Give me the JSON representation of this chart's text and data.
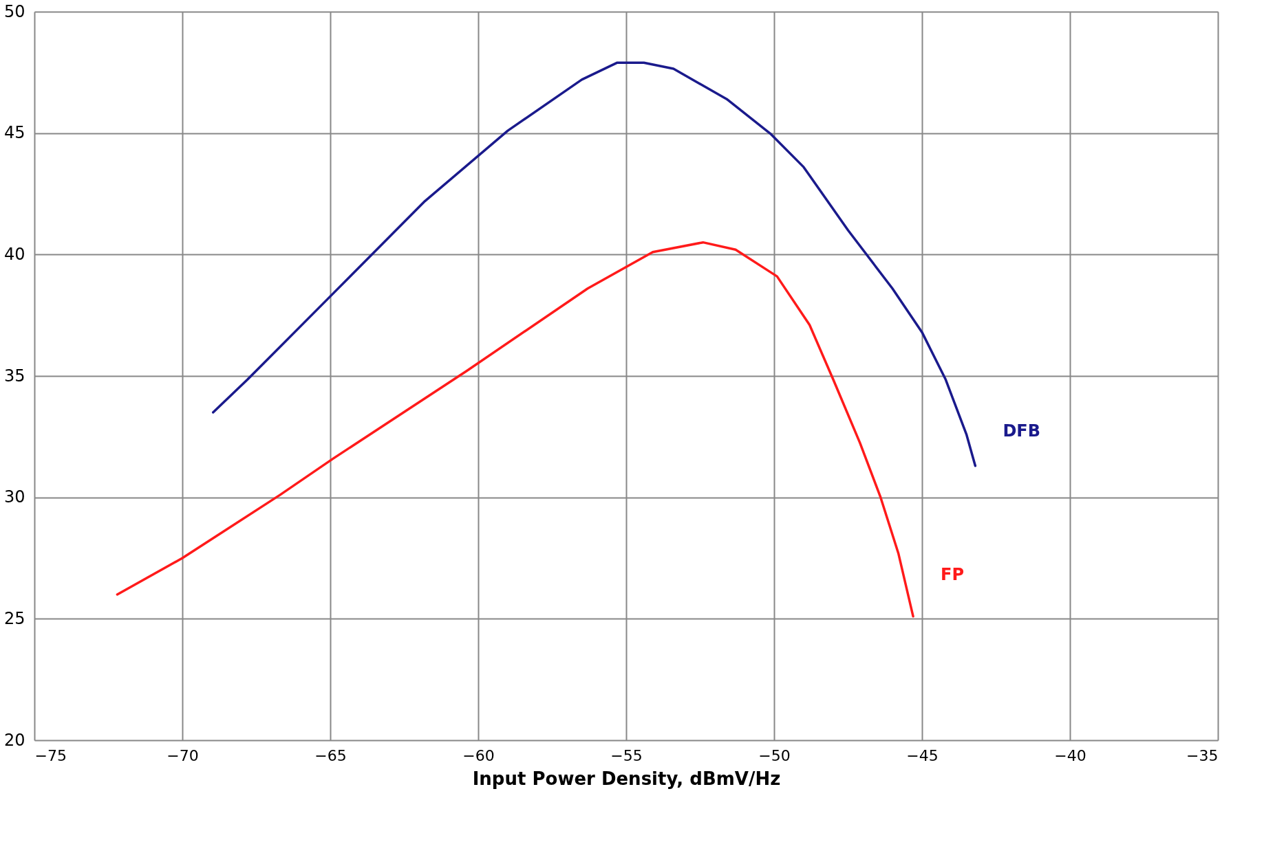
{
  "chart_data": {
    "type": "line",
    "xlabel": "Input Power Density, dBmV/Hz",
    "xlim": [
      -75,
      -35
    ],
    "xticks": [
      -75,
      -70,
      -65,
      -60,
      -55,
      -50,
      -45,
      -40,
      -35
    ],
    "ylim": [
      20,
      50
    ],
    "yticks": [
      20,
      25,
      30,
      35,
      40,
      45,
      50
    ],
    "grid": true,
    "line_style": "solid",
    "marker": "none",
    "series": [
      {
        "name": "DFB",
        "color": "#1a1a8c",
        "x": [
          -68.96,
          -67.8,
          -64.9,
          -61.8,
          -59.0,
          -56.5,
          -55.3,
          -54.4,
          -53.4,
          -51.6,
          -50.1,
          -49.0,
          -47.5,
          -46.0,
          -45.0,
          -44.2,
          -43.5,
          -43.2
        ],
        "values": [
          33.5,
          34.85,
          38.4,
          42.2,
          45.1,
          47.2,
          47.9,
          47.9,
          47.65,
          46.4,
          44.95,
          43.6,
          41.0,
          38.6,
          36.8,
          34.85,
          32.6,
          31.3
        ]
      },
      {
        "name": "FP",
        "color": "#ff1a1a",
        "x": [
          -72.2,
          -70.0,
          -66.7,
          -64.9,
          -60.4,
          -56.3,
          -54.1,
          -52.4,
          -51.3,
          -49.9,
          -48.8,
          -48.0,
          -47.1,
          -46.4,
          -45.8,
          -45.3
        ],
        "values": [
          26.0,
          27.5,
          30.1,
          31.6,
          35.2,
          38.6,
          40.1,
          40.5,
          40.2,
          39.1,
          37.1,
          34.85,
          32.25,
          30.0,
          27.7,
          25.1
        ]
      }
    ]
  }
}
